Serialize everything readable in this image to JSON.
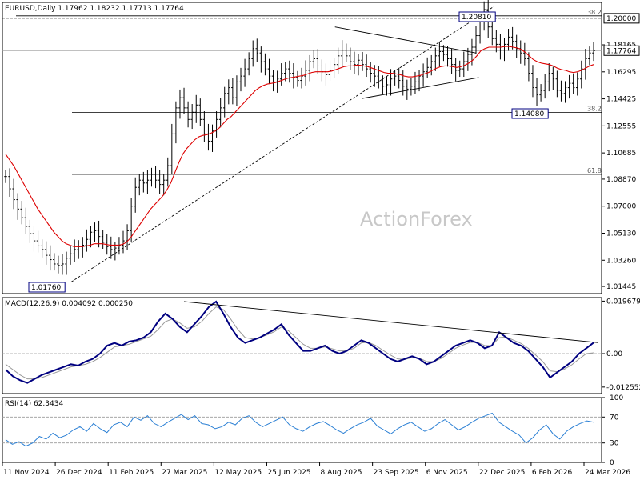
{
  "chart_data": {
    "type": "line",
    "watermark": "ActionForex",
    "colors": {
      "price": "#000000",
      "ema": "#dd0000",
      "macd": "#000080",
      "signal": "#999999",
      "rsi": "#2a7fd4",
      "levels": "#000000"
    },
    "x": {
      "tick_labels": [
        "11 Nov 2024",
        "26 Dec 2024",
        "11 Feb 2025",
        "27 Mar 2025",
        "12 May 2025",
        "25 Jun 2025",
        "8 Aug 2025",
        "23 Sep 2025",
        "6 Nov 2025",
        "22 Dec 2025",
        "6 Feb 2026",
        "24 Mar 2026"
      ]
    },
    "price_panel": {
      "title": "EURUSD,Daily  1.17962 1.18232 1.17713 1.17764",
      "ylim": [
        1.0095,
        1.211
      ],
      "y_ticks": [
        "1.20000",
        "1.18165",
        "1.16295",
        "1.14425",
        "1.12555",
        "1.10685",
        "1.08870",
        "1.07000",
        "1.05130",
        "1.03260",
        "1.01445"
      ],
      "current_price": "1.17764",
      "level_200": "1.20000",
      "high_label": "1.20810",
      "low_label_1": "1.14080",
      "low_label_2": "1.01760",
      "fib": [
        {
          "label": "38.2",
          "value": 1.2017
        },
        {
          "label": "38.2",
          "value": 1.1348
        },
        {
          "label": "61.8",
          "value": 1.092
        }
      ],
      "close": [
        1.0905,
        1.082,
        1.0745,
        1.068,
        1.062,
        1.056,
        1.051,
        1.046,
        1.0425,
        1.04,
        1.036,
        1.033,
        1.03,
        1.029,
        1.03,
        1.034,
        1.037,
        1.04,
        1.042,
        1.043,
        1.047,
        1.052,
        1.053,
        1.049,
        1.045,
        1.042,
        1.04,
        1.041,
        1.043,
        1.046,
        1.053,
        1.07,
        1.083,
        1.088,
        1.086,
        1.088,
        1.092,
        1.088,
        1.085,
        1.088,
        1.098,
        1.12,
        1.138,
        1.145,
        1.138,
        1.13,
        1.135,
        1.14,
        1.13,
        1.12,
        1.115,
        1.122,
        1.13,
        1.138,
        1.148,
        1.152,
        1.145,
        1.156,
        1.16,
        1.165,
        1.172,
        1.179,
        1.176,
        1.17,
        1.165,
        1.16,
        1.156,
        1.158,
        1.162,
        1.165,
        1.162,
        1.159,
        1.157,
        1.16,
        1.164,
        1.17,
        1.172,
        1.167,
        1.163,
        1.161,
        1.164,
        1.168,
        1.174,
        1.178,
        1.174,
        1.17,
        1.168,
        1.171,
        1.168,
        1.165,
        1.162,
        1.16,
        1.156,
        1.153,
        1.154,
        1.158,
        1.16,
        1.157,
        1.153,
        1.151,
        1.153,
        1.156,
        1.16,
        1.163,
        1.166,
        1.17,
        1.174,
        1.177,
        1.175,
        1.172,
        1.168,
        1.164,
        1.165,
        1.17,
        1.175,
        1.18,
        1.188,
        1.198,
        1.206,
        1.194,
        1.186,
        1.182,
        1.178,
        1.182,
        1.187,
        1.184,
        1.179,
        1.176,
        1.172,
        1.162,
        1.152,
        1.147,
        1.15,
        1.156,
        1.162,
        1.158,
        1.15,
        1.148,
        1.152,
        1.155,
        1.152,
        1.158,
        1.165,
        1.172,
        1.176,
        1.1776
      ],
      "ema": [
        1.106,
        1.102,
        1.098,
        1.093,
        1.088,
        1.083,
        1.078,
        1.073,
        1.068,
        1.064,
        1.06,
        1.056,
        1.052,
        1.049,
        1.046,
        1.044,
        1.043,
        1.042,
        1.042,
        1.042,
        1.0425,
        1.043,
        1.044,
        1.044,
        1.044,
        1.0435,
        1.043,
        1.043,
        1.043,
        1.0435,
        1.045,
        1.048,
        1.052,
        1.056,
        1.06,
        1.064,
        1.068,
        1.071,
        1.074,
        1.077,
        1.081,
        1.086,
        1.093,
        1.1,
        1.106,
        1.11,
        1.113,
        1.116,
        1.118,
        1.119,
        1.1195,
        1.1205,
        1.122,
        1.124,
        1.127,
        1.13,
        1.132,
        1.135,
        1.138,
        1.141,
        1.144,
        1.147,
        1.15,
        1.152,
        1.1535,
        1.1545,
        1.155,
        1.1555,
        1.1565,
        1.1575,
        1.1585,
        1.159,
        1.1595,
        1.16,
        1.1605,
        1.1615,
        1.1625,
        1.163,
        1.163,
        1.163,
        1.163,
        1.1635,
        1.1645,
        1.1655,
        1.1665,
        1.167,
        1.167,
        1.1675,
        1.1675,
        1.167,
        1.1665,
        1.1655,
        1.1645,
        1.1635,
        1.1625,
        1.162,
        1.162,
        1.1615,
        1.161,
        1.16,
        1.1595,
        1.1595,
        1.16,
        1.1605,
        1.1615,
        1.1625,
        1.164,
        1.1655,
        1.1665,
        1.167,
        1.167,
        1.1665,
        1.166,
        1.1665,
        1.1675,
        1.169,
        1.171,
        1.174,
        1.1775,
        1.179,
        1.18,
        1.18,
        1.18,
        1.18,
        1.1805,
        1.1805,
        1.18,
        1.1795,
        1.1785,
        1.1765,
        1.174,
        1.1715,
        1.17,
        1.169,
        1.1685,
        1.168,
        1.167,
        1.1655,
        1.1645,
        1.164,
        1.163,
        1.1625,
        1.163,
        1.164,
        1.1655,
        1.167,
        1.168
      ],
      "trendlines": [
        {
          "name": "long-term-support",
          "from": [
            0.115,
            1.0176
          ],
          "to": [
            0.82,
            1.2081
          ],
          "style": "dashed"
        },
        {
          "name": "triangle-upper",
          "from": [
            0.555,
            1.194
          ],
          "to": [
            0.79,
            1.176
          ],
          "style": "solid"
        },
        {
          "name": "triangle-lower",
          "from": [
            0.6,
            1.1445
          ],
          "to": [
            0.795,
            1.159
          ],
          "style": "solid"
        }
      ]
    },
    "macd_panel": {
      "title": "MACD(12,26,9) 0.004092 0.000250",
      "ylim": [
        -0.015,
        0.021
      ],
      "y_ticks": [
        "0.019679",
        "0.00",
        "-0.012552"
      ],
      "zero_label": "0.00",
      "macd": [
        -0.006,
        -0.0085,
        -0.01,
        -0.011,
        -0.0095,
        -0.008,
        -0.007,
        -0.006,
        -0.005,
        -0.004,
        -0.0045,
        -0.003,
        -0.002,
        0.0,
        0.003,
        0.004,
        0.003,
        0.0045,
        0.005,
        0.006,
        0.008,
        0.012,
        0.015,
        0.013,
        0.01,
        0.008,
        0.011,
        0.014,
        0.0175,
        0.0195,
        0.015,
        0.01,
        0.006,
        0.004,
        0.005,
        0.006,
        0.0075,
        0.009,
        0.011,
        0.007,
        0.004,
        0.001,
        0.001,
        0.002,
        0.003,
        0.001,
        0.0,
        0.001,
        0.003,
        0.005,
        0.004,
        0.002,
        0.0,
        -0.002,
        -0.003,
        -0.002,
        -0.001,
        -0.002,
        -0.004,
        -0.003,
        -0.001,
        0.001,
        0.003,
        0.004,
        0.005,
        0.004,
        0.002,
        0.003,
        0.008,
        0.006,
        0.004,
        0.003,
        0.001,
        -0.002,
        -0.005,
        -0.009,
        -0.007,
        -0.005,
        -0.003,
        0.0,
        0.002,
        0.0041
      ],
      "signal": [
        -0.004,
        -0.006,
        -0.008,
        -0.0095,
        -0.0095,
        -0.009,
        -0.008,
        -0.007,
        -0.006,
        -0.005,
        -0.0045,
        -0.004,
        -0.003,
        -0.0015,
        0.0005,
        0.0025,
        0.003,
        0.0035,
        0.0045,
        0.0055,
        0.0065,
        0.009,
        0.012,
        0.013,
        0.0115,
        0.0095,
        0.01,
        0.012,
        0.015,
        0.0175,
        0.0165,
        0.013,
        0.009,
        0.006,
        0.0055,
        0.006,
        0.007,
        0.0082,
        0.01,
        0.0085,
        0.006,
        0.0035,
        0.002,
        0.002,
        0.0025,
        0.0018,
        0.001,
        0.001,
        0.002,
        0.004,
        0.0042,
        0.003,
        0.0012,
        -0.0005,
        -0.002,
        -0.0022,
        -0.0015,
        -0.0017,
        -0.003,
        -0.003,
        -0.0018,
        0.0,
        0.002,
        0.0032,
        0.0042,
        0.0042,
        0.003,
        0.003,
        0.006,
        0.0062,
        0.005,
        0.0038,
        0.002,
        -0.0005,
        -0.003,
        -0.0065,
        -0.0068,
        -0.0058,
        -0.0042,
        -0.002,
        0.0,
        0.0003
      ]
    },
    "rsi_panel": {
      "title": "RSI(14) 62.3434",
      "ylim": [
        0,
        100
      ],
      "y_ticks": [
        "100",
        "70",
        "30",
        "0"
      ],
      "levels": [
        30,
        70
      ],
      "rsi": [
        35,
        28,
        32,
        25,
        30,
        40,
        36,
        45,
        38,
        42,
        50,
        55,
        48,
        60,
        52,
        46,
        58,
        62,
        55,
        70,
        65,
        72,
        60,
        55,
        62,
        68,
        74,
        66,
        72,
        60,
        58,
        52,
        55,
        62,
        58,
        68,
        72,
        62,
        55,
        60,
        65,
        70,
        58,
        52,
        48,
        55,
        60,
        63,
        57,
        50,
        45,
        52,
        58,
        62,
        68,
        56,
        50,
        44,
        52,
        58,
        62,
        55,
        48,
        52,
        60,
        66,
        58,
        50,
        55,
        62,
        68,
        72,
        76,
        62,
        55,
        48,
        42,
        30,
        38,
        50,
        58,
        44,
        36,
        48,
        55,
        60,
        64,
        62
      ],
      "rsi_note": "values sampled left to right across the RSI panel"
    }
  }
}
